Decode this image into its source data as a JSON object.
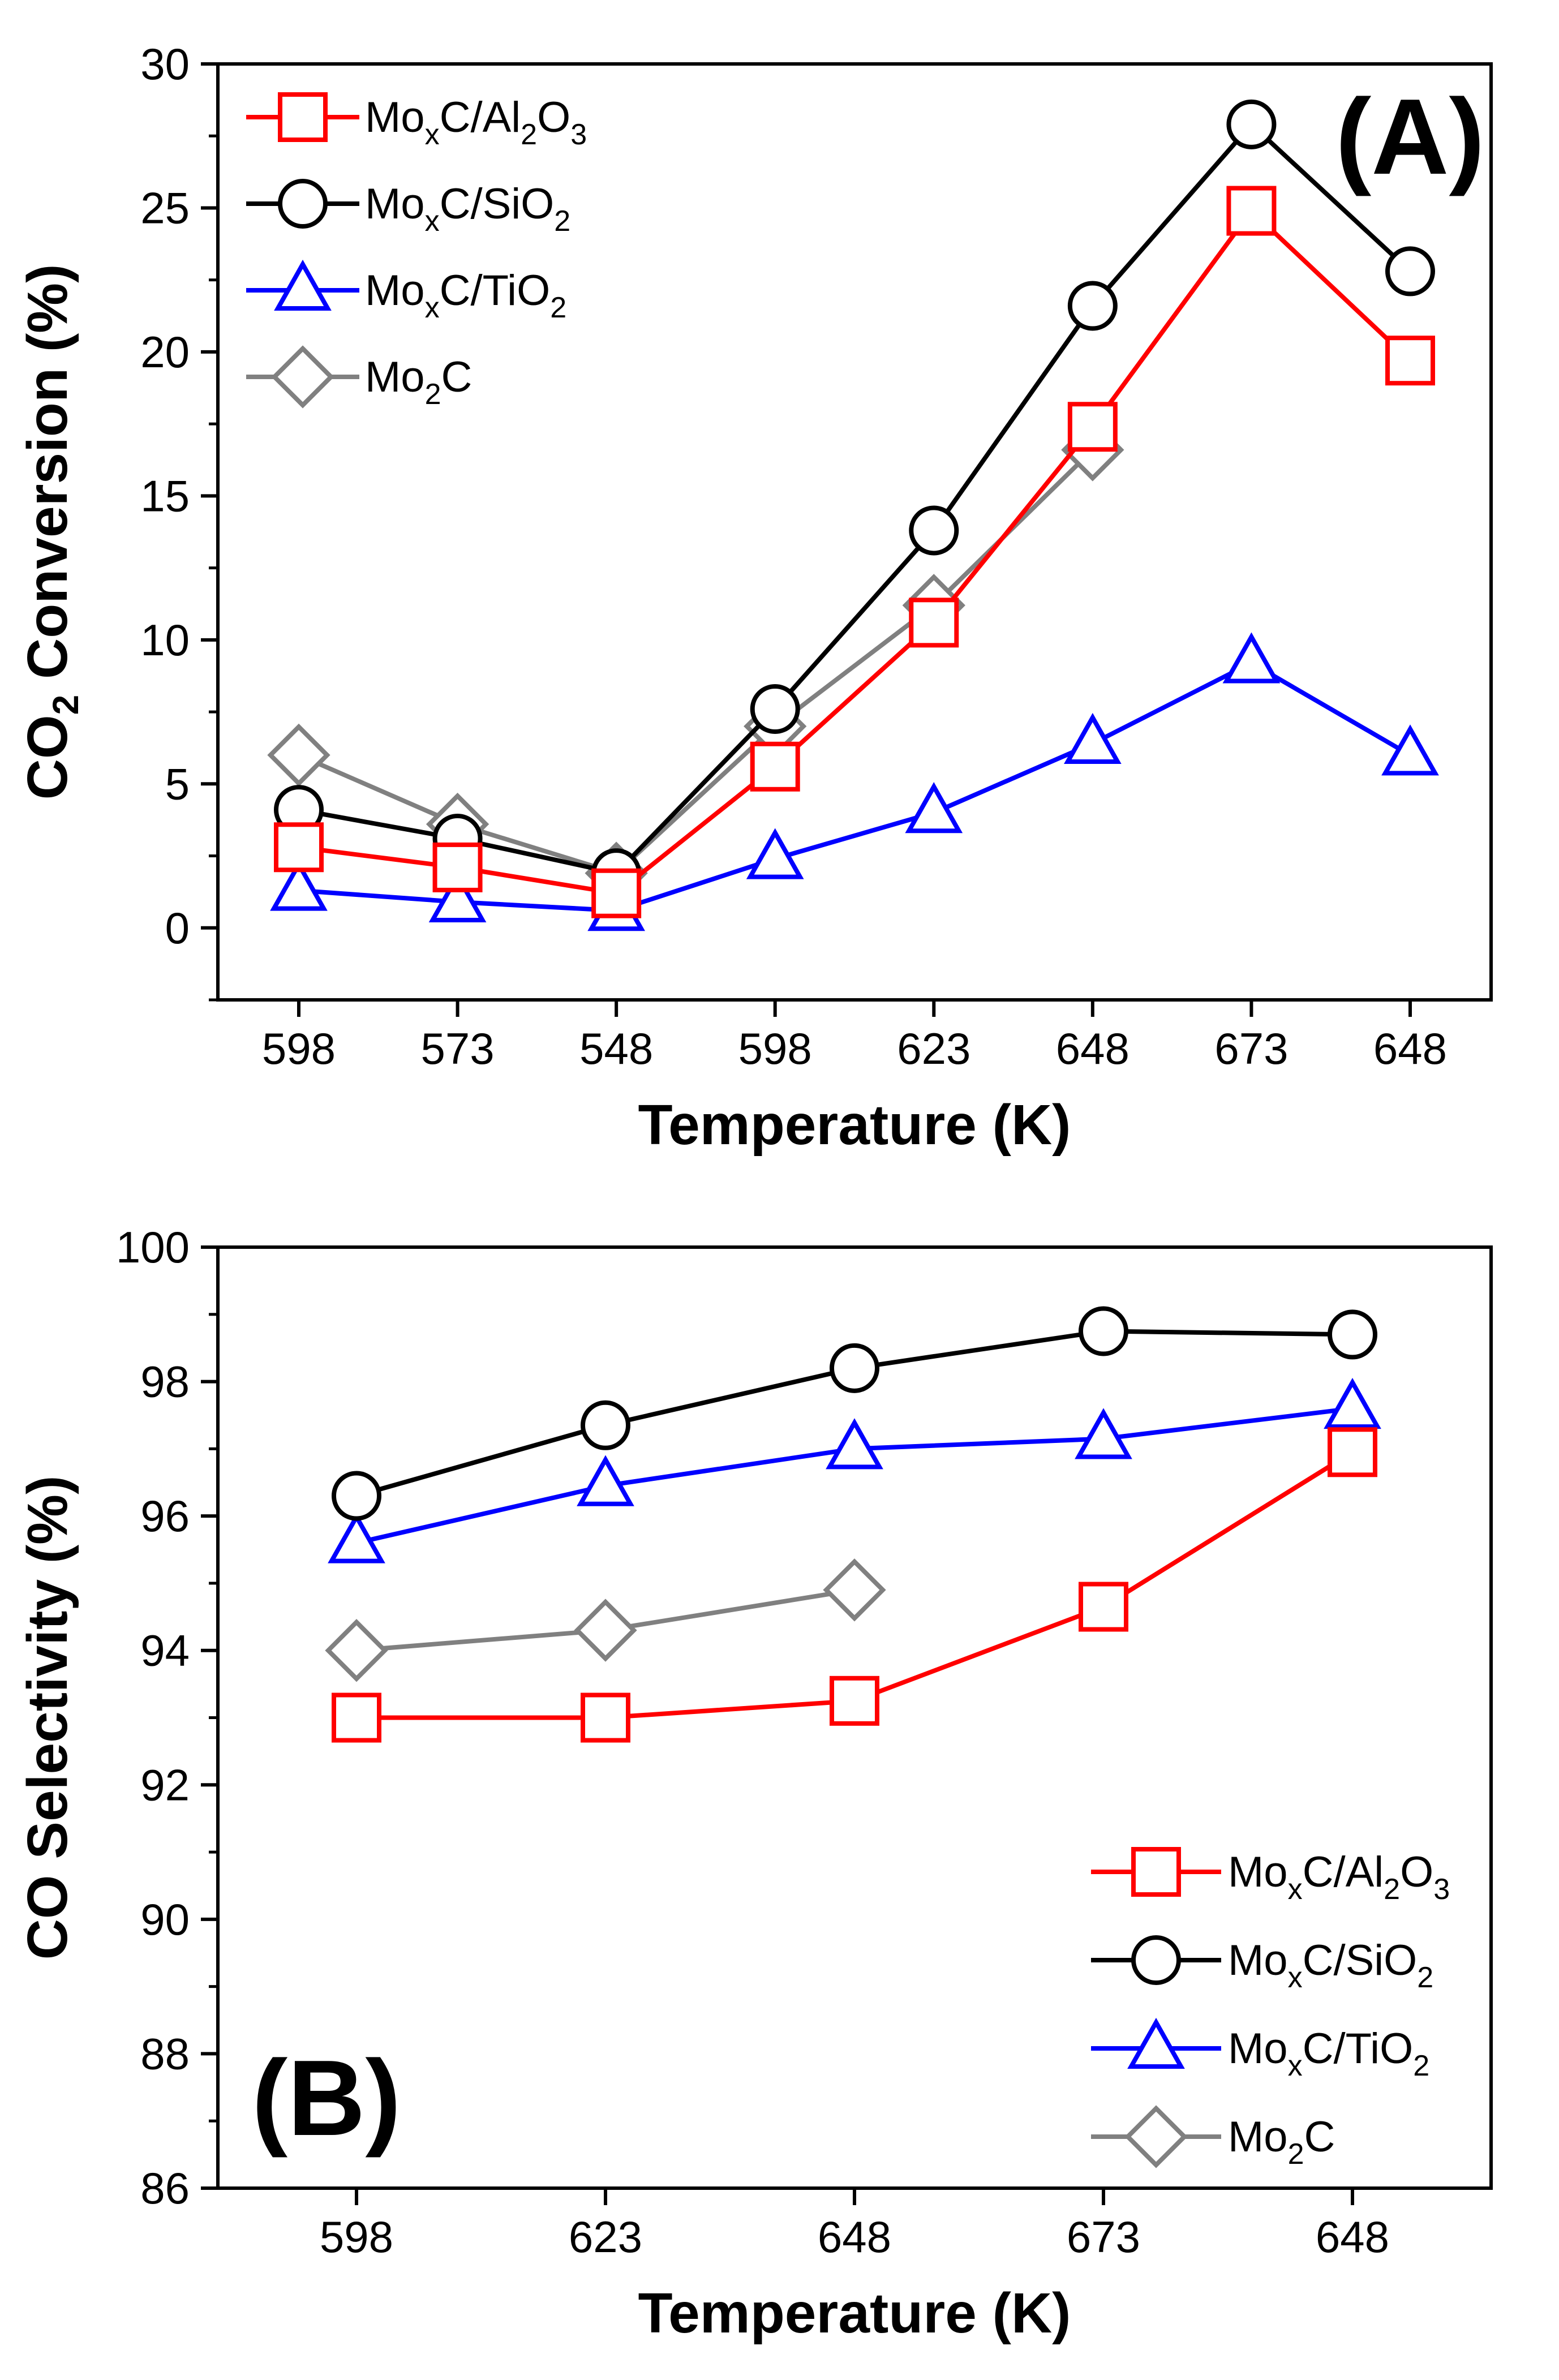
{
  "figure_name": "co2-hydrogenation-figure",
  "chart_data": [
    {
      "id": "A",
      "type": "line",
      "panel_label": "(A)",
      "title": "",
      "xlabel": "Temperature (K)",
      "ylabel_parts": [
        "CO",
        "2",
        " Conversion (%)"
      ],
      "categories": [
        "598",
        "573",
        "548",
        "598",
        "623",
        "648",
        "673",
        "648"
      ],
      "ylim": [
        -2.5,
        30
      ],
      "yticks": [
        0,
        5,
        10,
        15,
        20,
        25,
        30
      ],
      "legend_position": "top-left",
      "series": [
        {
          "key": "moxc-al2o3",
          "name_parts": [
            [
              "Mo",
              ""
            ],
            [
              "x",
              "sub"
            ],
            [
              "C/Al",
              ""
            ],
            [
              "2",
              "sub"
            ],
            [
              "O",
              ""
            ],
            [
              "3",
              "sub"
            ]
          ],
          "color": "#ff0000",
          "marker": "square",
          "values": [
            2.8,
            2.1,
            1.2,
            5.6,
            10.6,
            17.4,
            24.9,
            19.7
          ]
        },
        {
          "key": "moxc-sio2",
          "name_parts": [
            [
              "Mo",
              ""
            ],
            [
              "x",
              "sub"
            ],
            [
              "C/SiO",
              ""
            ],
            [
              "2",
              "sub"
            ]
          ],
          "color": "#000000",
          "marker": "circle",
          "values": [
            4.1,
            3.1,
            1.9,
            7.6,
            13.8,
            21.6,
            27.9,
            22.8
          ]
        },
        {
          "key": "moxc-tio2",
          "name_parts": [
            [
              "Mo",
              ""
            ],
            [
              "x",
              "sub"
            ],
            [
              "C/TiO",
              ""
            ],
            [
              "2",
              "sub"
            ]
          ],
          "color": "#0000ff",
          "marker": "triangle",
          "values": [
            1.3,
            0.9,
            0.6,
            2.4,
            4.0,
            6.4,
            9.2,
            6.0
          ]
        },
        {
          "key": "mo2c",
          "name_parts": [
            [
              "Mo",
              ""
            ],
            [
              "2",
              "sub"
            ],
            [
              "C",
              ""
            ]
          ],
          "color": "#808080",
          "marker": "diamond",
          "values": [
            6.0,
            3.6,
            1.9,
            7.0,
            11.2,
            16.6,
            null,
            null
          ]
        }
      ]
    },
    {
      "id": "B",
      "type": "line",
      "panel_label": "(B)",
      "title": "",
      "xlabel": "Temperature (K)",
      "ylabel_parts": [
        "CO Selectivity (%)"
      ],
      "categories": [
        "598",
        "623",
        "648",
        "673",
        "648"
      ],
      "ylim": [
        86,
        100
      ],
      "yticks": [
        86,
        88,
        90,
        92,
        94,
        96,
        98,
        100
      ],
      "legend_position": "bottom-right",
      "series": [
        {
          "key": "moxc-al2o3",
          "name_parts": [
            [
              "Mo",
              ""
            ],
            [
              "x",
              "sub"
            ],
            [
              "C/Al",
              ""
            ],
            [
              "2",
              "sub"
            ],
            [
              "O",
              ""
            ],
            [
              "3",
              "sub"
            ]
          ],
          "color": "#ff0000",
          "marker": "square",
          "values": [
            93.0,
            93.0,
            93.25,
            94.65,
            96.95
          ]
        },
        {
          "key": "moxc-sio2",
          "name_parts": [
            [
              "Mo",
              ""
            ],
            [
              "x",
              "sub"
            ],
            [
              "C/SiO",
              ""
            ],
            [
              "2",
              "sub"
            ]
          ],
          "color": "#000000",
          "marker": "circle",
          "values": [
            96.3,
            97.35,
            98.2,
            98.75,
            98.7
          ]
        },
        {
          "key": "moxc-tio2",
          "name_parts": [
            [
              "Mo",
              ""
            ],
            [
              "x",
              "sub"
            ],
            [
              "C/TiO",
              ""
            ],
            [
              "2",
              "sub"
            ]
          ],
          "color": "#0000ff",
          "marker": "triangle",
          "values": [
            95.6,
            96.45,
            97.0,
            97.15,
            97.6
          ]
        },
        {
          "key": "mo2c",
          "name_parts": [
            [
              "Mo",
              ""
            ],
            [
              "2",
              "sub"
            ],
            [
              "C",
              ""
            ]
          ],
          "color": "#808080",
          "marker": "diamond",
          "values": [
            94.0,
            94.3,
            94.9,
            null,
            null
          ]
        }
      ]
    }
  ]
}
